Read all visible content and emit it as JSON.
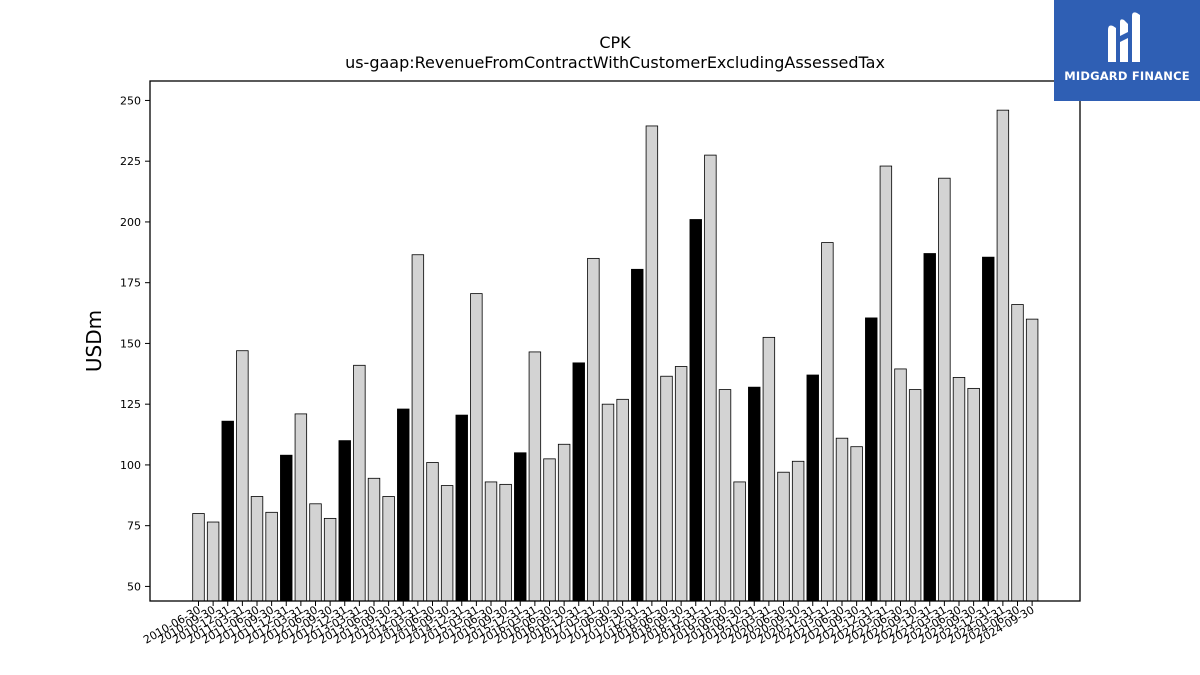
{
  "brand": {
    "name": "MIDGARD FINANCE",
    "bg_color": "#2f5fb4",
    "icon": "midgard-logo-icon"
  },
  "chart_data": {
    "type": "bar",
    "title": "CPK",
    "subtitle": "us-gaap:RevenueFromContractWithCustomerExcludingAssessedTax",
    "xlabel": "",
    "ylabel": "USDm",
    "ylim": [
      44,
      258
    ],
    "yticks": [
      50,
      75,
      100,
      125,
      150,
      175,
      200,
      225,
      250
    ],
    "grid": false,
    "colors": {
      "highlight": "#000000",
      "normal": "#d3d3d3",
      "edge": "#000000"
    },
    "categories": [
      "2010-06-30",
      "2010-09-30",
      "2010-12-31",
      "2011-03-31",
      "2011-06-30",
      "2011-09-30",
      "2011-12-31",
      "2012-03-31",
      "2012-06-30",
      "2012-09-30",
      "2012-12-31",
      "2013-03-31",
      "2013-06-30",
      "2013-09-30",
      "2013-12-31",
      "2014-03-31",
      "2014-06-30",
      "2014-09-30",
      "2014-12-31",
      "2015-03-31",
      "2015-06-30",
      "2015-09-30",
      "2015-12-31",
      "2016-03-31",
      "2016-06-30",
      "2016-09-30",
      "2016-12-31",
      "2017-03-31",
      "2017-06-30",
      "2017-09-30",
      "2017-12-31",
      "2018-03-31",
      "2018-06-30",
      "2018-09-30",
      "2018-12-31",
      "2019-03-31",
      "2019-06-30",
      "2019-09-30",
      "2019-12-31",
      "2020-03-31",
      "2020-06-30",
      "2020-09-30",
      "2020-12-31",
      "2021-03-31",
      "2021-06-30",
      "2021-09-30",
      "2021-12-31",
      "2022-03-31",
      "2022-06-30",
      "2022-09-30",
      "2022-12-31",
      "2023-03-31",
      "2023-06-30",
      "2023-09-30",
      "2023-12-31",
      "2024-03-31",
      "2024-06-30",
      "2024-09-30"
    ],
    "values": [
      80,
      76.5,
      118,
      147,
      87,
      80.5,
      104,
      121,
      84,
      78,
      110,
      141,
      94.5,
      87,
      123,
      186.5,
      101,
      91.5,
      120.5,
      170.5,
      93,
      92,
      105,
      146.5,
      102.5,
      108.5,
      142,
      185,
      125,
      127,
      180.5,
      239.5,
      136.5,
      140.5,
      201,
      227.5,
      131,
      93,
      132,
      152.5,
      97,
      101.5,
      137,
      191.5,
      111,
      107.5,
      160.5,
      223,
      139.5,
      131,
      187,
      218,
      136,
      131.5,
      185.5,
      246,
      166,
      160
    ],
    "highlight": [
      false,
      false,
      true,
      false,
      false,
      false,
      true,
      false,
      false,
      false,
      true,
      false,
      false,
      false,
      true,
      false,
      false,
      false,
      true,
      false,
      false,
      false,
      true,
      false,
      false,
      false,
      true,
      false,
      false,
      false,
      true,
      false,
      false,
      false,
      true,
      false,
      false,
      false,
      true,
      false,
      false,
      false,
      true,
      false,
      false,
      false,
      true,
      false,
      false,
      false,
      true,
      false,
      false,
      false,
      true,
      false,
      false,
      false
    ]
  }
}
